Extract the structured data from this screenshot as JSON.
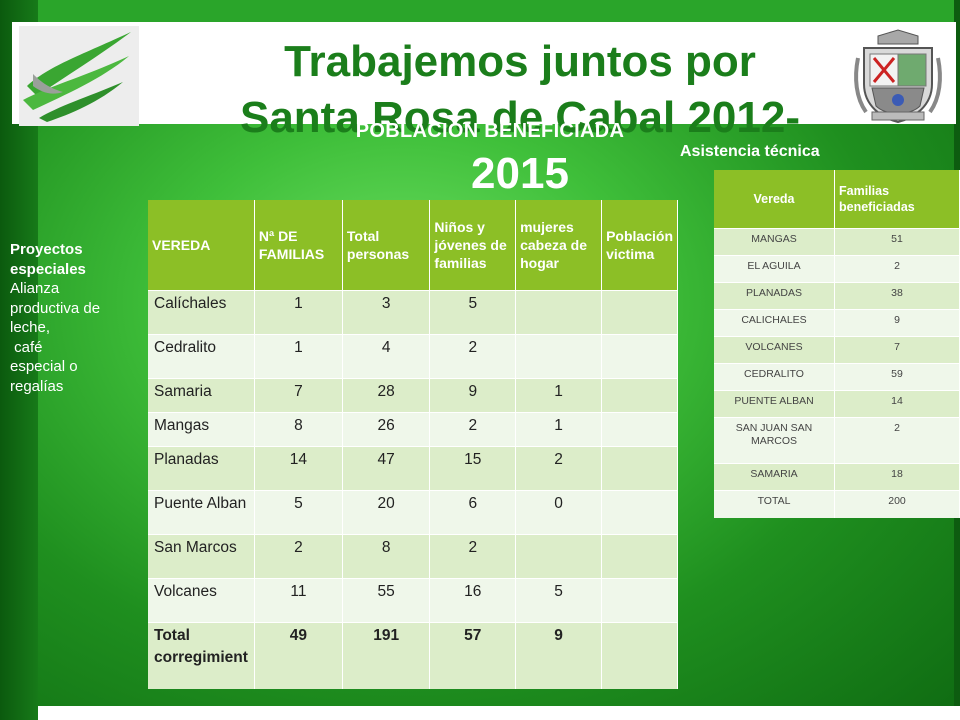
{
  "header": {
    "title_line1": "Trabajemos juntos por",
    "title_line2": "Santa Rosa de Cabal  2012-",
    "title_line3": "2015",
    "subtitle": "POBLACION BENEFICIADA",
    "asistencia": "Asistencia técnica"
  },
  "logos": {
    "left": "leaf-logo",
    "right": "coat-of-arms"
  },
  "sidebar": {
    "title1": "Proyectos",
    "title2": "especiales",
    "line1": "Alianza",
    "line2": "productiva de",
    "line3": "leche,",
    "line4": " café",
    "line5": "especial o",
    "line6": "regalías"
  },
  "table1": {
    "headers": [
      "VEREDA",
      "Nª DE FAMILIAS",
      "Total personas",
      "Niños y jóvenes de familias",
      "mujeres cabeza de hogar",
      "Población victima"
    ],
    "rows": [
      [
        "Calíchales",
        "1",
        "3",
        "5",
        "",
        ""
      ],
      [
        "Cedralito",
        "1",
        "4",
        "2",
        "",
        ""
      ],
      [
        "Samaria",
        "7",
        "28",
        "9",
        "1",
        ""
      ],
      [
        "Mangas",
        "8",
        "26",
        "2",
        "1",
        ""
      ],
      [
        "Planadas",
        "14",
        "47",
        "15",
        "2",
        ""
      ],
      [
        "Puente Alban",
        "5",
        "20",
        "6",
        "0",
        ""
      ],
      [
        "San Marcos",
        "2",
        "8",
        "2",
        "",
        ""
      ],
      [
        "Volcanes",
        "11",
        "55",
        "16",
        "5",
        ""
      ],
      [
        "Total corregimient",
        "49",
        "191",
        "57",
        "9",
        ""
      ]
    ]
  },
  "table2": {
    "headers": [
      "Vereda",
      "Familias beneficiadas"
    ],
    "rows": [
      [
        "MANGAS",
        "51"
      ],
      [
        "EL AGUILA",
        "2"
      ],
      [
        "PLANADAS",
        "38"
      ],
      [
        "CALICHALES",
        "9"
      ],
      [
        "VOLCANES",
        "7"
      ],
      [
        "CEDRALITO",
        "59"
      ],
      [
        "PUENTE  ALBAN",
        "14"
      ],
      [
        "SAN JUAN SAN MARCOS",
        "2"
      ],
      [
        "SAMARIA",
        "18"
      ],
      [
        "TOTAL",
        "200"
      ]
    ]
  }
}
